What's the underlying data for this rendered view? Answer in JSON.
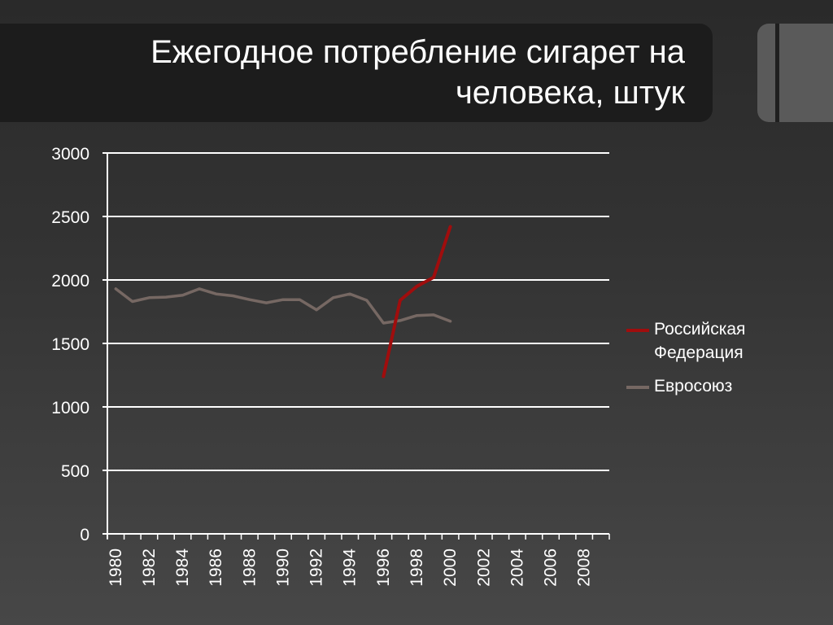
{
  "slide": {
    "title_line1": "Ежегодное потребление сигарет на",
    "title_line2": "человека, штук"
  },
  "colors": {
    "russia": "#a00d0d",
    "eu": "#766863",
    "grid": "#ffffff",
    "axis_text": "#ffffff"
  },
  "chart_data": {
    "type": "line",
    "title": "",
    "xlabel": "",
    "ylabel": "",
    "ylim": [
      0,
      3000
    ],
    "yticks": [
      0,
      500,
      1000,
      1500,
      2000,
      2500,
      3000
    ],
    "xlim": [
      1980,
      2009
    ],
    "xticks": [
      1980,
      1982,
      1984,
      1986,
      1988,
      1990,
      1992,
      1994,
      1996,
      1998,
      2000,
      2002,
      2004,
      2006,
      2008
    ],
    "grid": true,
    "legend_position": "right",
    "series": [
      {
        "name": "Российская Федерация",
        "color": "#a00d0d",
        "x": [
          1996,
          1997,
          1998,
          1999,
          2000
        ],
        "y": [
          1240,
          1840,
          1950,
          2020,
          2420
        ]
      },
      {
        "name": "Евросоюз",
        "color": "#766863",
        "x": [
          1980,
          1981,
          1982,
          1983,
          1984,
          1985,
          1986,
          1987,
          1988,
          1989,
          1990,
          1991,
          1992,
          1993,
          1994,
          1995,
          1996,
          1997,
          1998,
          1999,
          2000
        ],
        "y": [
          1930,
          1830,
          1860,
          1865,
          1880,
          1930,
          1890,
          1875,
          1845,
          1820,
          1845,
          1845,
          1765,
          1860,
          1890,
          1840,
          1660,
          1680,
          1720,
          1725,
          1675
        ]
      }
    ]
  }
}
